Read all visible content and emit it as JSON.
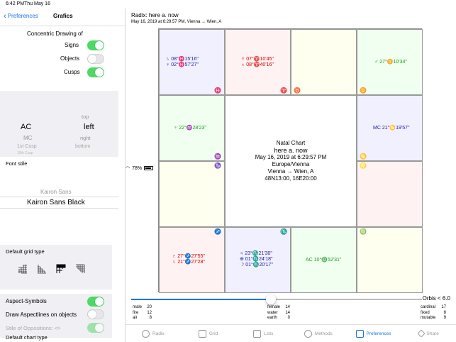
{
  "status": {
    "time": "6:42 PM",
    "date": "Thu May 16",
    "battery": "78%"
  },
  "nav": {
    "back_label": "Preferences",
    "title": "Grafics"
  },
  "concentric": {
    "heading": "Concentric Drawing of",
    "items": [
      {
        "label": "Signs",
        "on": true
      },
      {
        "label": "Objects",
        "on": false
      },
      {
        "label": "Cusps",
        "on": true
      }
    ]
  },
  "picker": {
    "left_selected": "AC",
    "left_below1": "MC",
    "left_below2": "1st Cusp",
    "left_below3": "10th Cusp",
    "right_above": "top",
    "right_selected": "left",
    "right_below1": "right",
    "right_below2": "bottom"
  },
  "font": {
    "label": "Font stile",
    "option_above": "Kairon Sans",
    "selected": "Kairon Sans Black"
  },
  "grid_type": {
    "label": "Default grid type"
  },
  "aspects": {
    "aspect_symbols": "Aspect-Symbols",
    "draw_aspectlines": "Draw Aspectlines on objects",
    "oppositions": "Stile of Oppositions: <>"
  },
  "chart_type_label": "Default chart type",
  "header": {
    "line1": "Radix: here a. now",
    "line2": "May 16, 2019 at 6:29:57 PM, Vienna → Wien, A"
  },
  "chart": {
    "center": [
      "Natal Chart",
      "here a. now",
      "May 16, 2019 at 6:29:57 PM",
      "Europe/Vienna",
      "Vienna → Wien, A",
      "48N13:00, 16E20:00"
    ],
    "cells": {
      "pisces": [
        "♄ 08°♓15'16\"",
        "♀ 02°♓57'27\""
      ],
      "aries": [
        "☿ 07°♈10'45\"",
        "♁ 08°♈40'16\""
      ],
      "gemini": [
        "♂ 27°♊10'34\""
      ],
      "aquarius": [
        "♆ 22°♒28'23\""
      ],
      "cancer": [
        "MC 21°♋19'57\""
      ],
      "sagittarius": [
        "♇ 27°♐27'55\"",
        "♄ 21°♐27'28\""
      ],
      "scorpio": [
        "♃ 23°♏21'30\"",
        "⊕ 01°♏24'18\"",
        "☽ 01°♏20'17\""
      ],
      "libra": [
        "AC 10°♎52'31\""
      ]
    },
    "signs": {
      "pisces": "♓",
      "aries": "♈",
      "taurus": "♉",
      "gemini": "♊",
      "aquarius": "♒",
      "cancer": "♋",
      "capricorn": "♑",
      "leo": "♌",
      "sagittarius": "♐",
      "scorpio": "♏",
      "virgo": "♍"
    }
  },
  "orbis": "Orbis < 6.0",
  "stats": {
    "left": [
      [
        "male",
        "20"
      ],
      [
        "fire",
        "12"
      ],
      [
        "air",
        "8"
      ]
    ],
    "mid": [
      [
        "female",
        "14"
      ],
      [
        "water",
        "14"
      ],
      [
        "earth",
        "0"
      ]
    ],
    "right": [
      [
        "cardinal",
        "17"
      ],
      [
        "fixed",
        "8"
      ],
      [
        "mutable",
        "9"
      ]
    ]
  },
  "tabs": [
    "Radix",
    "Grid",
    "Lists",
    "Methods",
    "Preferences",
    "Share"
  ],
  "slider": {
    "value": 0.48
  }
}
